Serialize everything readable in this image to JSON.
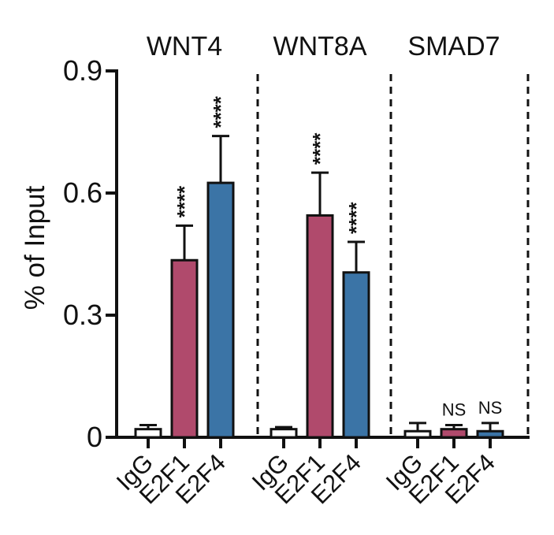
{
  "chart_data": {
    "type": "bar",
    "ylabel": "% of Input",
    "ylim": [
      0,
      0.9
    ],
    "yticks": [
      "0",
      "0.3",
      "0.6",
      "0.9"
    ],
    "ytick_values": [
      0,
      0.3,
      0.6,
      0.9
    ],
    "groups": [
      {
        "title": "WNT4",
        "bars": [
          {
            "category": "IgG",
            "value": 0.02,
            "error": 0.01,
            "annotation": ""
          },
          {
            "category": "E2F1",
            "value": 0.435,
            "error": 0.085,
            "annotation": "****"
          },
          {
            "category": "E2F4",
            "value": 0.625,
            "error": 0.115,
            "annotation": "****"
          }
        ]
      },
      {
        "title": "WNT8A",
        "bars": [
          {
            "category": "IgG",
            "value": 0.02,
            "error": 0.005,
            "annotation": ""
          },
          {
            "category": "E2F1",
            "value": 0.545,
            "error": 0.105,
            "annotation": "****"
          },
          {
            "category": "E2F4",
            "value": 0.405,
            "error": 0.075,
            "annotation": "****"
          }
        ]
      },
      {
        "title": "SMAD7",
        "bars": [
          {
            "category": "IgG",
            "value": 0.015,
            "error": 0.02,
            "annotation": ""
          },
          {
            "category": "E2F1",
            "value": 0.02,
            "error": 0.01,
            "annotation": "NS"
          },
          {
            "category": "E2F4",
            "value": 0.015,
            "error": 0.02,
            "annotation": "NS"
          }
        ]
      }
    ],
    "colors": {
      "IgG": "#ffffff",
      "E2F1": "#b04a6c",
      "E2F4": "#3b74a6"
    },
    "grid": false,
    "legend": "none"
  }
}
